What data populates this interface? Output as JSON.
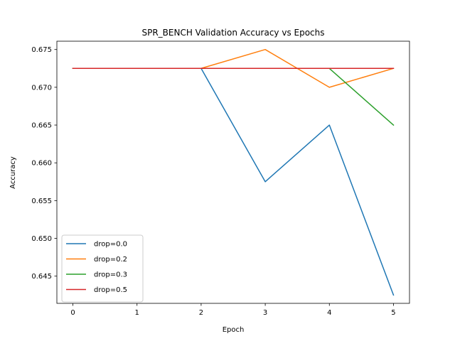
{
  "chart_data": {
    "type": "line",
    "title": "SPR_BENCH Validation Accuracy vs Epochs",
    "xlabel": "Epoch",
    "ylabel": "Accuracy",
    "x": [
      0,
      1,
      2,
      3,
      4,
      5
    ],
    "xlim": [
      -0.25,
      5.25
    ],
    "ylim": [
      0.6414,
      0.6761
    ],
    "xticks": [
      "0",
      "1",
      "2",
      "3",
      "4",
      "5"
    ],
    "yticks": [
      "0.645",
      "0.650",
      "0.655",
      "0.660",
      "0.665",
      "0.670",
      "0.675"
    ],
    "grid": false,
    "legend_position": "lower-left",
    "series": [
      {
        "name": "drop=0.0",
        "color": "#1f77b4",
        "values": [
          0.6725,
          0.6725,
          0.6725,
          0.6575,
          0.665,
          0.6425
        ]
      },
      {
        "name": "drop=0.2",
        "color": "#ff7f0e",
        "values": [
          0.6725,
          0.6725,
          0.6725,
          0.675,
          0.67,
          0.6725
        ]
      },
      {
        "name": "drop=0.3",
        "color": "#2ca02c",
        "values": [
          0.6725,
          0.6725,
          0.6725,
          0.6725,
          0.6725,
          0.665
        ]
      },
      {
        "name": "drop=0.5",
        "color": "#d62728",
        "values": [
          0.6725,
          0.6725,
          0.6725,
          0.6725,
          0.6725,
          0.6725
        ]
      }
    ]
  }
}
